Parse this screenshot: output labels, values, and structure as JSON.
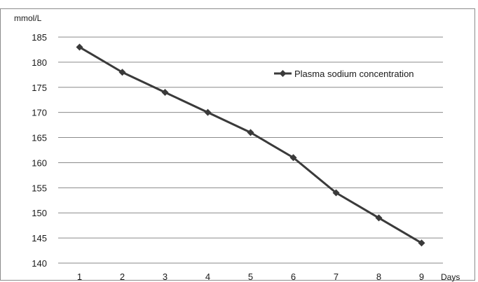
{
  "chart_data": {
    "type": "line",
    "title": "",
    "xlabel": "Days",
    "ylabel": "mmol/L",
    "x": [
      1,
      2,
      3,
      4,
      5,
      6,
      7,
      8,
      9
    ],
    "x_tick_labels": [
      "1",
      "2",
      "3",
      "4",
      "5",
      "6",
      "7",
      "8",
      "9"
    ],
    "y_tick_labels": [
      "140",
      "145",
      "150",
      "155",
      "160",
      "165",
      "170",
      "175",
      "180",
      "185"
    ],
    "ylim": [
      140,
      185
    ],
    "y_tick_step": 5,
    "grid": "horizontal",
    "legend_position": "top-right",
    "series": [
      {
        "name": "Plasma sodium concentration",
        "values": [
          183,
          178,
          174,
          170,
          166,
          161,
          154,
          149,
          144
        ],
        "marker": "diamond",
        "color": "#3a3a3a"
      }
    ]
  }
}
